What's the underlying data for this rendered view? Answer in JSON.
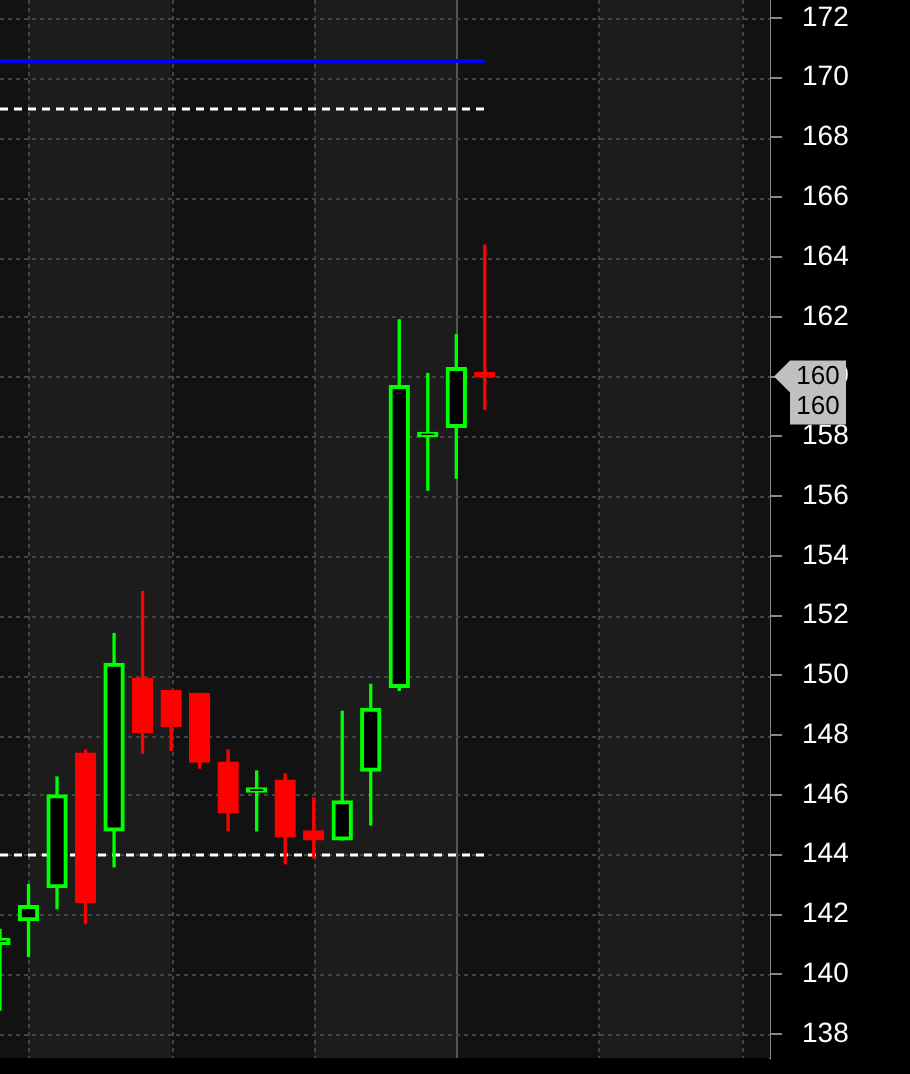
{
  "chart_data": {
    "type": "candlestick",
    "categories": [
      null,
      null,
      null,
      null,
      null,
      null,
      null,
      null,
      null,
      null,
      null,
      null,
      null,
      null,
      null,
      null,
      null,
      null,
      null,
      null,
      null,
      null,
      null,
      null,
      null,
      null,
      null,
      null
    ],
    "ohlc": [
      [
        141.0,
        141.5,
        138.8,
        141.2
      ],
      [
        141.8,
        143.0,
        140.6,
        142.3
      ],
      [
        142.9,
        146.6,
        142.2,
        146.0
      ],
      [
        147.4,
        147.5,
        141.7,
        142.4
      ],
      [
        144.8,
        151.4,
        143.6,
        150.4
      ],
      [
        149.9,
        152.8,
        147.4,
        148.1
      ],
      [
        149.5,
        149.5,
        147.5,
        148.3
      ],
      [
        149.4,
        149.4,
        146.9,
        147.1
      ],
      [
        147.1,
        147.5,
        144.8,
        145.4
      ],
      [
        146.1,
        146.8,
        144.8,
        146.2
      ],
      [
        146.5,
        146.7,
        143.7,
        144.6
      ],
      [
        144.8,
        145.9,
        143.9,
        144.5
      ],
      [
        144.5,
        148.8,
        144.5,
        145.8
      ],
      [
        146.8,
        149.7,
        145.0,
        148.9
      ],
      [
        149.6,
        161.9,
        149.5,
        159.7
      ],
      [
        158.0,
        160.1,
        156.2,
        158.1
      ],
      [
        158.3,
        161.4,
        156.6,
        160.3
      ],
      [
        160.0,
        164.4,
        158.9,
        160.0
      ],
      null,
      null,
      null,
      null,
      null,
      null,
      null,
      null,
      null,
      null
    ],
    "colors": [
      "#00ff00",
      "#00ff00",
      "#00ff00",
      "#ff0000",
      "#00ff00",
      "#ff0000",
      "#ff0000",
      "#ff0000",
      "#ff0000",
      "#00ff00",
      "#ff0000",
      "#ff0000",
      "#00ff00",
      "#00ff00",
      "#00ff00",
      "#00ff00",
      "#00ff00",
      "#ff0000",
      null,
      null,
      null,
      null,
      null,
      null,
      null,
      null,
      null,
      null
    ],
    "ylim": [
      137.2,
      172.6
    ],
    "yticks": [
      138,
      140,
      142,
      144,
      146,
      148,
      150,
      152,
      154,
      156,
      158,
      160,
      162,
      164,
      166,
      168,
      170,
      172
    ],
    "grid": true,
    "tick_labels": "y",
    "ref_lines": [
      {
        "axis": "y",
        "value": 170.6,
        "color": "#0000ff",
        "line_style": "solid"
      },
      {
        "axis": "y",
        "value": 169.0,
        "color": "#ffffff",
        "line_style": "dashed"
      },
      {
        "axis": "y",
        "value": 144.0,
        "color": "#ffffff",
        "line_style": "dashed"
      }
    ],
    "annotations": [
      "160",
      "160"
    ],
    "legend": false
  }
}
